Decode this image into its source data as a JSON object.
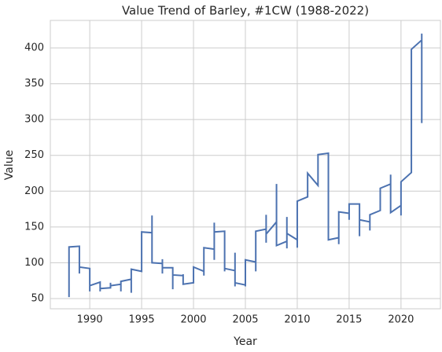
{
  "chart_data": {
    "type": "line",
    "title": "Value Trend of Barley, #1CW (1988-2022)",
    "x_label": "Year",
    "y_label": "Value",
    "x": [
      1988,
      1988,
      1989,
      1989,
      1989,
      1990,
      1990,
      1990,
      1991,
      1991,
      1991,
      1992,
      1992,
      1992,
      1993,
      1993,
      1993,
      1994,
      1994,
      1994,
      1995,
      1995,
      1996,
      1996,
      1996,
      1997,
      1997,
      1997,
      1997,
      1998,
      1998,
      1998,
      1999,
      1999,
      1999,
      1999,
      2000,
      2000,
      2001,
      2001,
      2001,
      2002,
      2002,
      2002,
      2002,
      2003,
      2003,
      2003,
      2004,
      2004,
      2004,
      2004,
      2005,
      2005,
      2005,
      2006,
      2006,
      2006,
      2007,
      2007,
      2007,
      2007,
      2008,
      2008,
      2008,
      2009,
      2009,
      2009,
      2009,
      2010,
      2010,
      2010,
      2011,
      2011,
      2012,
      2012,
      2013,
      2013,
      2014,
      2014,
      2014,
      2015,
      2015,
      2015,
      2016,
      2016,
      2016,
      2017,
      2017,
      2017,
      2018,
      2018,
      2019,
      2019,
      2019,
      2020,
      2020,
      2020,
      2021,
      2021,
      2022,
      2022,
      2022,
      2022
    ],
    "series": [
      {
        "name": "Value",
        "color": "#4c72b0",
        "values": [
          52,
          122,
          123,
          85,
          94,
          92,
          60,
          68,
          73,
          60,
          64,
          65,
          72,
          68,
          70,
          60,
          74,
          77,
          58,
          91,
          88,
          143,
          142,
          166,
          100,
          99,
          105,
          85,
          93,
          93,
          63,
          83,
          82,
          75,
          84,
          70,
          72,
          94,
          88,
          82,
          121,
          119,
          156,
          104,
          143,
          144,
          88,
          92,
          89,
          114,
          67,
          72,
          69,
          67,
          104,
          101,
          88,
          144,
          147,
          167,
          128,
          140,
          157,
          210,
          124,
          130,
          164,
          120,
          141,
          132,
          121,
          186,
          192,
          225,
          208,
          251,
          253,
          132,
          135,
          126,
          171,
          169,
          160,
          182,
          182,
          137,
          160,
          157,
          145,
          167,
          173,
          204,
          210,
          223,
          170,
          180,
          166,
          213,
          226,
          398,
          411,
          420,
          295,
          346
        ]
      }
    ],
    "xlim": [
      1986.2,
      2023.8
    ],
    "xticks": [
      1990,
      1995,
      2000,
      2005,
      2010,
      2015,
      2020
    ],
    "ylim": [
      35.7,
      438.4
    ],
    "yticks": [
      50,
      100,
      150,
      200,
      250,
      300,
      350,
      400
    ],
    "grid": true
  }
}
